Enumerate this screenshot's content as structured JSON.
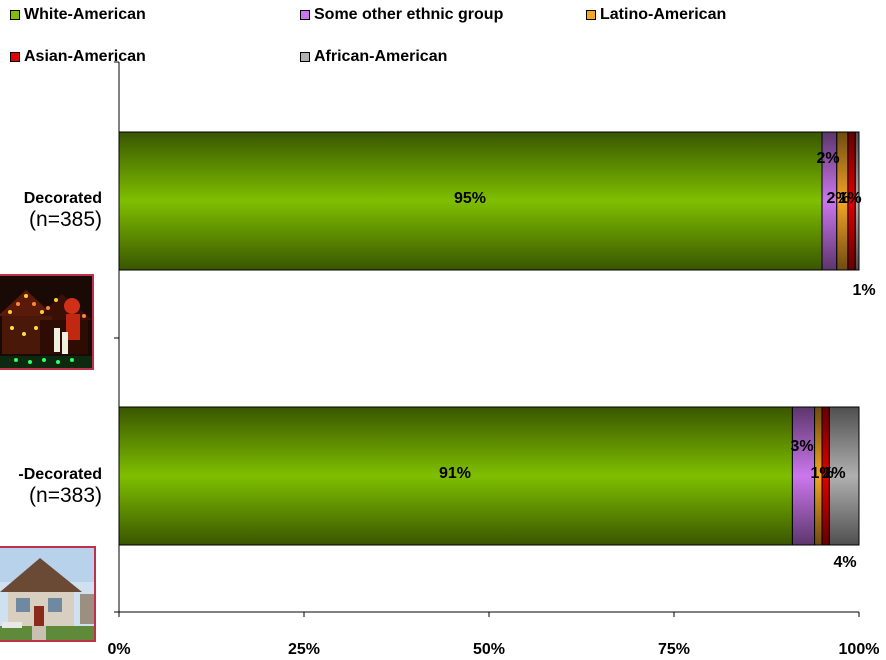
{
  "legend": [
    {
      "name": "White-American",
      "color": "#7fbf00"
    },
    {
      "name": "Some other ethnic group",
      "color": "#cc77ee"
    },
    {
      "name": "Latino-American",
      "color": "#f5a623"
    },
    {
      "name": "Asian-American",
      "color": "#e00000"
    },
    {
      "name": "African-American",
      "color": "#b0b0b0"
    }
  ],
  "categories": [
    {
      "name": "Decorated",
      "n_label": "(n=385)"
    },
    {
      "name": "-Decorated",
      "n_label": "(n=383)"
    }
  ],
  "chart_data": {
    "type": "bar",
    "orientation": "horizontal",
    "stacked": true,
    "categories": [
      "Decorated (n=385)",
      "-Decorated (n=383)"
    ],
    "series": [
      {
        "name": "White-American",
        "values": [
          95,
          91
        ],
        "labels": [
          "95%",
          "91%"
        ],
        "color": "#7fbf00"
      },
      {
        "name": "Some other ethnic group",
        "values": [
          2,
          3
        ],
        "labels": [
          "2%",
          "3%"
        ],
        "color": "#cc77ee"
      },
      {
        "name": "Latino-American",
        "values": [
          1.5,
          1
        ],
        "labels": [
          "2%",
          "1%"
        ],
        "color": "#f5a623"
      },
      {
        "name": "Asian-American",
        "values": [
          1,
          1
        ],
        "labels": [
          "1%",
          "1%"
        ],
        "color": "#e00000"
      },
      {
        "name": "African-American",
        "values": [
          0.5,
          4
        ],
        "labels": [
          "1%",
          "4%"
        ],
        "color": "#b0b0b0"
      }
    ],
    "xlim": [
      0,
      100
    ],
    "x_ticks": [
      "0%",
      "25%",
      "50%",
      "75%",
      "100%"
    ],
    "legend_position": "top",
    "grid": false
  }
}
